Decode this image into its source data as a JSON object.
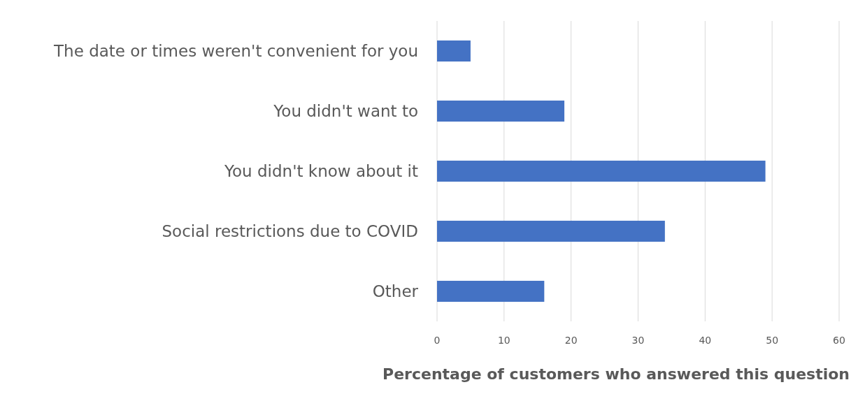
{
  "chart_data": {
    "type": "bar",
    "orientation": "horizontal",
    "xlabel": "Percentage of customers who answered this question",
    "categories": [
      "The date or times weren't convenient for you",
      "You didn't want to",
      "You didn't know about it",
      "Social restrictions due to COVID",
      "Other"
    ],
    "values": [
      5,
      19,
      49,
      34,
      16
    ],
    "color": "#4472c4",
    "xlim": [
      0,
      60
    ],
    "xticks": [
      0,
      10,
      20,
      30,
      40,
      50,
      60
    ],
    "grid": "x"
  }
}
